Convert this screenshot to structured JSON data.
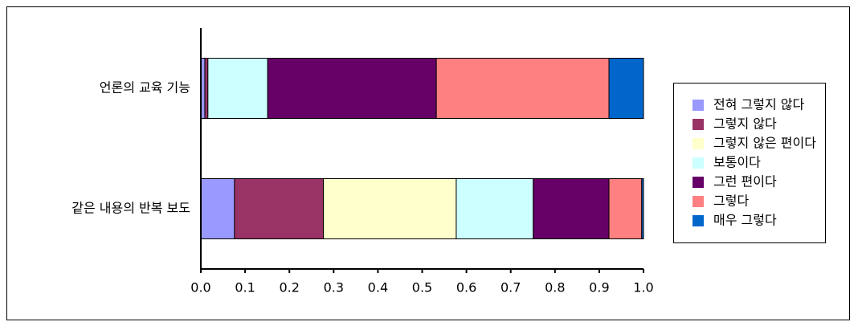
{
  "chart_data": {
    "type": "stacked-bar-horizontal",
    "categories": [
      "언론의 교육 기능",
      "같은 내용의 반복 보도"
    ],
    "series": [
      {
        "name": "전혀 그렇지 않다",
        "color": "#9999ff",
        "values": [
          0.009,
          0.076
        ]
      },
      {
        "name": "그렇지 않다",
        "color": "#993366",
        "values": [
          0.007,
          0.201
        ]
      },
      {
        "name": "그렇지 않은 편이다",
        "color": "#ffffcc",
        "values": [
          0,
          0.3
        ]
      },
      {
        "name": "보통이다",
        "color": "#ccffff",
        "values": [
          0.135,
          0.174
        ]
      },
      {
        "name": "그런 편이다",
        "color": "#660066",
        "values": [
          0.381,
          0.171
        ]
      },
      {
        "name": "그렇다",
        "color": "#ff8080",
        "values": [
          0.39,
          0.074
        ]
      },
      {
        "name": "매우 그렇다",
        "color": "#0066cc",
        "values": [
          0.078,
          0.004
        ]
      }
    ],
    "xlim": [
      0,
      1
    ],
    "xticks": [
      {
        "value": 0,
        "label": "0.0"
      },
      0.1,
      0.2,
      0.3,
      0.4,
      0.5,
      0.6,
      0.7,
      0.8,
      0.9,
      {
        "value": 1,
        "label": "1.0"
      }
    ],
    "legend": "right"
  }
}
